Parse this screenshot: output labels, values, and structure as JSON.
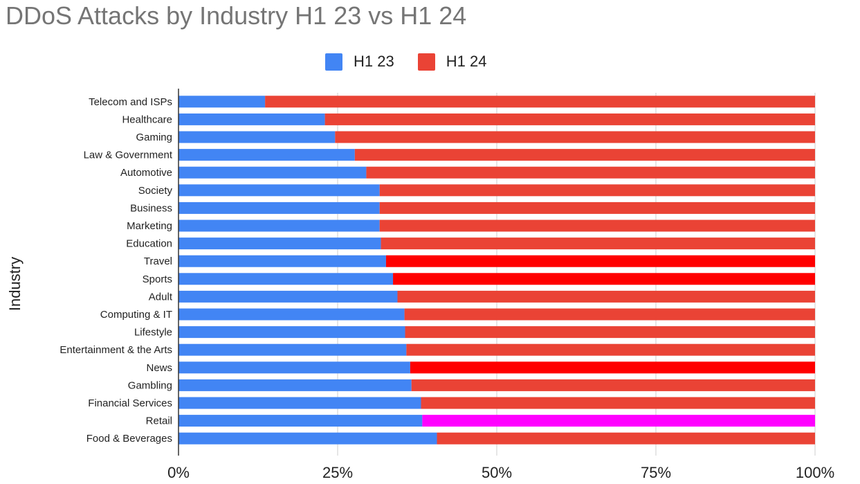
{
  "chart_data": {
    "type": "bar",
    "orientation": "horizontal",
    "stacked": "100%",
    "title": "DDoS Attacks by Industry H1 23 vs H1 24",
    "ylabel": "Industry",
    "xlabel": "",
    "xlim": [
      0,
      100
    ],
    "x_ticks": [
      "0%",
      "25%",
      "50%",
      "75%",
      "100%"
    ],
    "grid": true,
    "legend_position": "top",
    "categories": [
      "Telecom and ISPs",
      "Healthcare",
      "Gaming",
      "Law & Government",
      "Automotive",
      "Society",
      "Business",
      "Marketing",
      "Education",
      "Travel",
      "Sports",
      "Adult",
      "Computing & IT",
      "Lifestyle",
      "Entertainment & the Arts",
      "News",
      "Gambling",
      "Financial Services",
      "Retail",
      "Food & Beverages"
    ],
    "series": [
      {
        "name": "H1 23",
        "color": "#4285f4",
        "values": [
          13.6,
          23.0,
          24.6,
          27.7,
          29.5,
          31.6,
          31.6,
          31.6,
          31.8,
          32.6,
          33.7,
          34.4,
          35.5,
          35.6,
          35.8,
          36.4,
          36.6,
          38.1,
          38.3,
          40.6
        ]
      },
      {
        "name": "H1 24",
        "color": "#ea4335",
        "values": [
          86.4,
          77.0,
          75.4,
          72.3,
          70.5,
          68.4,
          68.4,
          68.4,
          68.2,
          67.4,
          66.3,
          65.6,
          64.5,
          64.4,
          64.2,
          63.6,
          63.4,
          61.9,
          61.7,
          59.4
        ],
        "point_colors": {
          "Travel": "#ff0000",
          "Sports": "#ff0000",
          "News": "#ff0000",
          "Retail": "#ff00ff"
        }
      }
    ]
  }
}
